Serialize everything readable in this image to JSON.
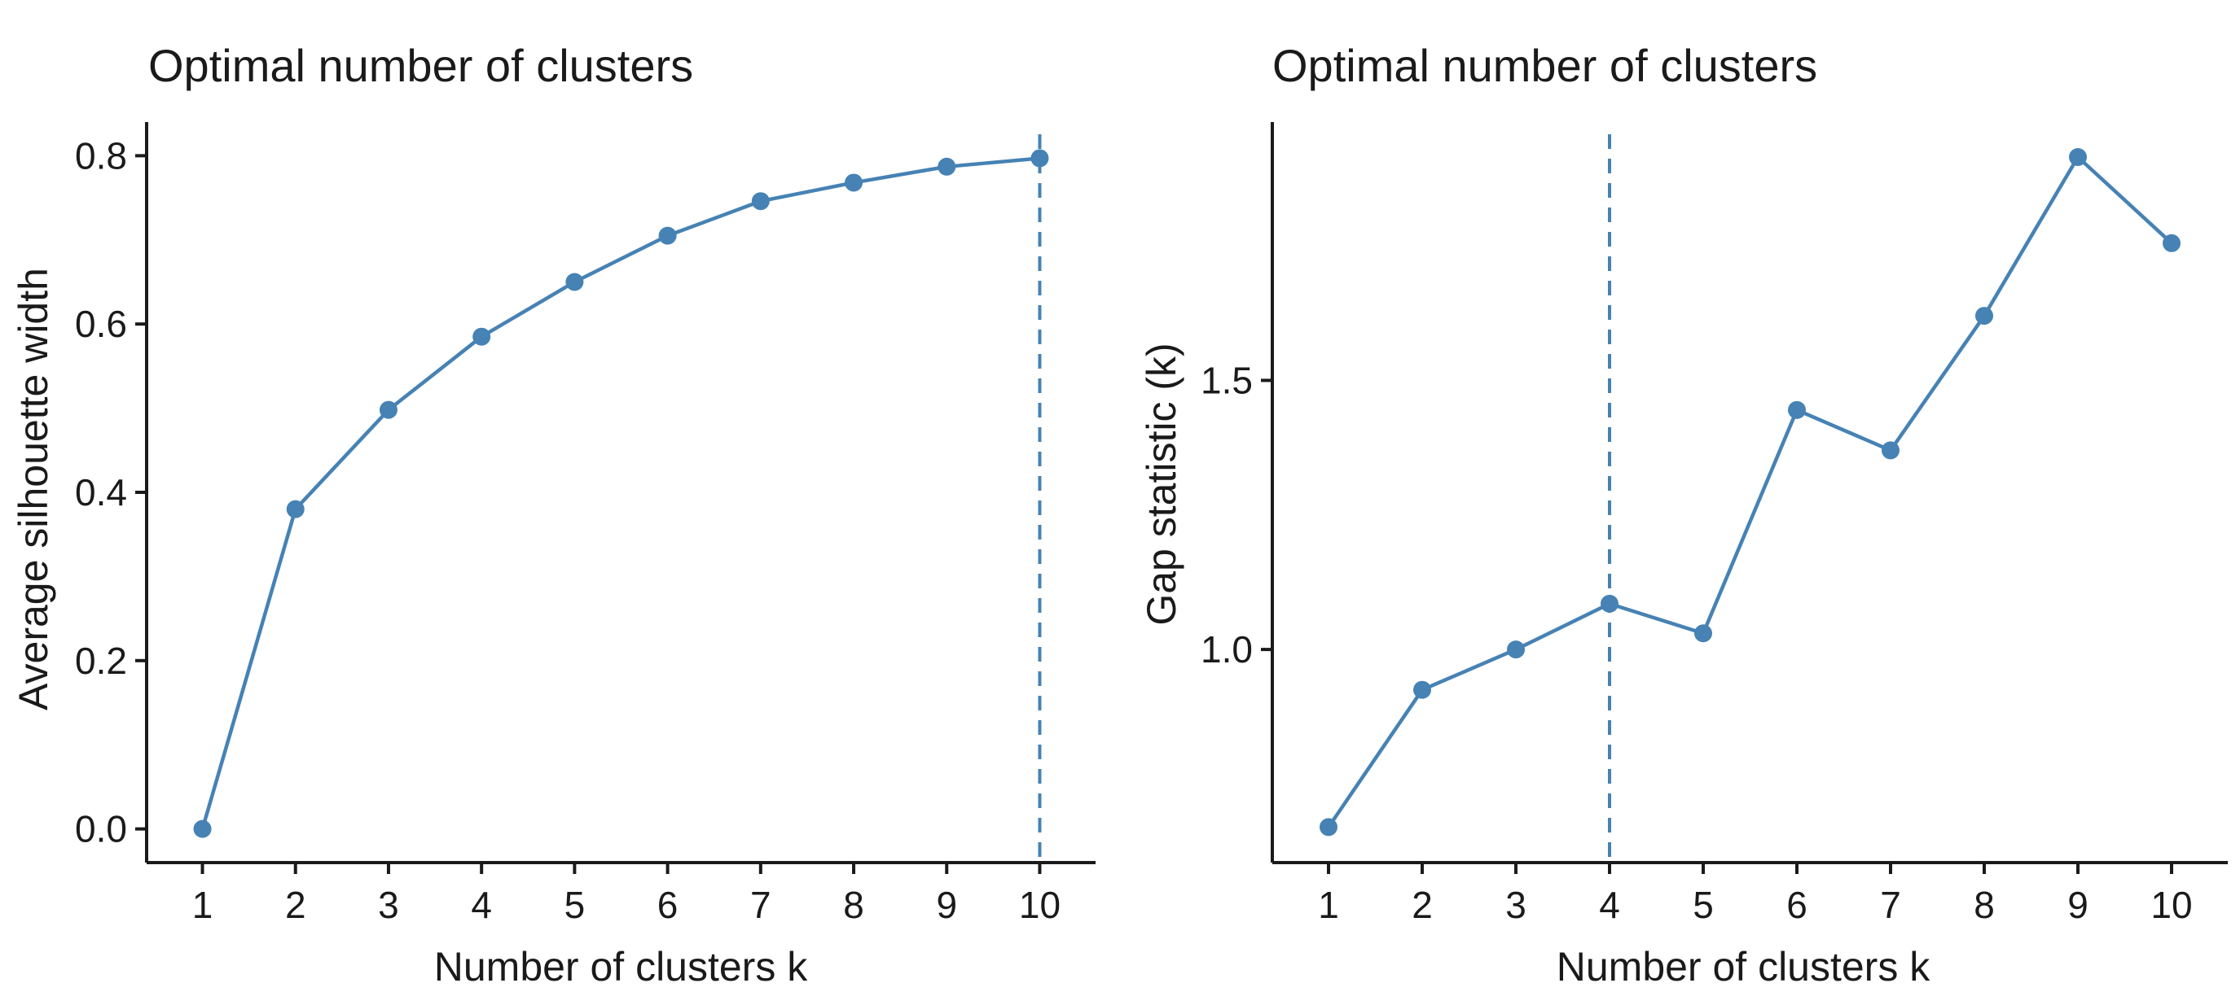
{
  "chart_data": [
    {
      "type": "line",
      "title": "Optimal number of clusters",
      "xlabel": "Number of clusters k",
      "ylabel": "Average silhouette width",
      "x": [
        1,
        2,
        3,
        4,
        5,
        6,
        7,
        8,
        9,
        10
      ],
      "values": [
        0.0,
        0.38,
        0.498,
        0.585,
        0.65,
        0.705,
        0.746,
        0.768,
        0.787,
        0.797
      ],
      "xlim": [
        0.4,
        10.6
      ],
      "ylim": [
        -0.04,
        0.84
      ],
      "yticks": [
        0.0,
        0.2,
        0.4,
        0.6,
        0.8
      ],
      "ytick_labels": [
        "0.0",
        "0.2",
        "0.4",
        "0.6",
        "0.8"
      ],
      "xtick_labels": [
        "1",
        "2",
        "3",
        "4",
        "5",
        "6",
        "7",
        "8",
        "9",
        "10"
      ],
      "optimal_k": 10,
      "color": "#4682b4",
      "grid": false
    },
    {
      "type": "line",
      "title": "Optimal number of clusters",
      "xlabel": "Number of clusters k",
      "ylabel": "Gap statistic (k)",
      "x": [
        1,
        2,
        3,
        4,
        5,
        6,
        7,
        8,
        9,
        10
      ],
      "values": [
        0.67,
        0.925,
        1.0,
        1.085,
        1.03,
        1.445,
        1.37,
        1.62,
        1.915,
        1.755
      ],
      "xlim": [
        0.4,
        10.6
      ],
      "ylim": [
        0.604,
        1.98
      ],
      "yticks": [
        1.0,
        1.5
      ],
      "ytick_labels": [
        "1.0",
        "1.5"
      ],
      "xtick_labels": [
        "1",
        "2",
        "3",
        "4",
        "5",
        "6",
        "7",
        "8",
        "9",
        "10"
      ],
      "optimal_k": 4,
      "color": "#4682b4",
      "grid": false
    }
  ]
}
